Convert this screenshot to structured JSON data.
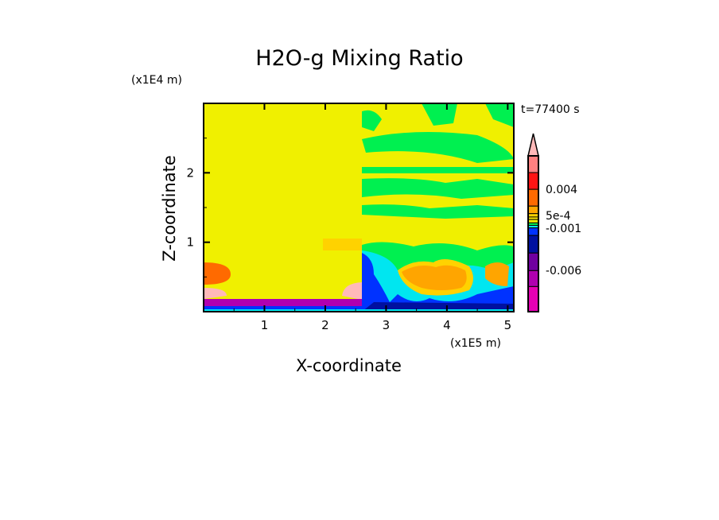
{
  "chart_data": {
    "type": "heatmap",
    "title": "H2O-g Mixing Ratio",
    "xlabel": "X-coordinate",
    "ylabel": "Z-coordinate",
    "x_unit": "(x1E5 m)",
    "y_unit": "(x1E4 m)",
    "annotation": "t=77400 s",
    "xlim": [
      0,
      5.1
    ],
    "ylim": [
      0,
      3.0
    ],
    "x_ticks": [
      "1",
      "2",
      "3",
      "4",
      "5"
    ],
    "x_tick_values": [
      1,
      2,
      3,
      4,
      5
    ],
    "y_ticks": [
      "1",
      "2"
    ],
    "y_tick_values": [
      1,
      2
    ],
    "colorbar": {
      "labels": [
        "0.004",
        "5e-4",
        "-0.001",
        "-0.006"
      ],
      "label_values": [
        0.004,
        0.0005,
        -0.001,
        -0.006
      ],
      "colors_top_to_bottom": [
        "#ff8080",
        "#ff1414",
        "#ff6a00",
        "#ffa500",
        "#ffd200",
        "#ffe600",
        "#f0f000",
        "#00f050",
        "#00e6f0",
        "#0032ff",
        "#0010a0",
        "#7000a0",
        "#b000b0",
        "#e600b4"
      ],
      "extend_top_color": "#ffb9b9"
    },
    "field_description_regions": [
      {
        "region": "left domain x<2.6",
        "dominant_value_color": "#f0f000"
      },
      {
        "region": "right domain x>2.6 upper",
        "dominant_value_color": "#f0f000",
        "bands": "#00f050"
      },
      {
        "region": "surface layer z<0.2",
        "dominant_value_color": "#b000b0"
      },
      {
        "region": "right lower z<0.9",
        "dominant_value_color": "#0032ff"
      }
    ]
  }
}
